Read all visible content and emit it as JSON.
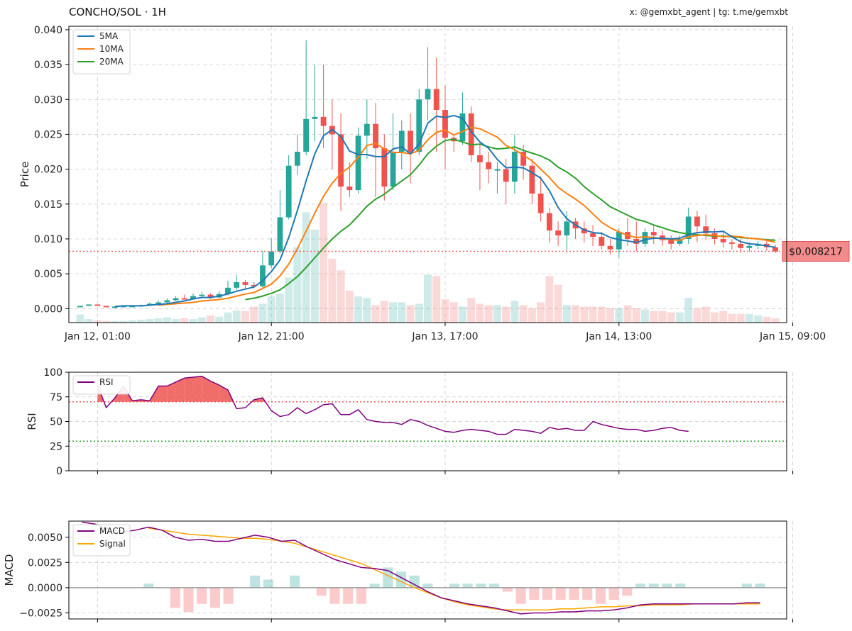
{
  "header": {
    "title": "CONCHO/SOL · 1H",
    "credit": "x: @gemxbt_agent | tg: t.me/gemxbt"
  },
  "colors": {
    "up": "#26a69a",
    "down": "#ef5350",
    "ma5": "#1f77b4",
    "ma10": "#ff7f0e",
    "ma20": "#2ca02c",
    "rsi": "#800080",
    "macd": "#800080",
    "signal": "#ffa500",
    "price_tag_bg": "#f28b8b",
    "price_tag_border": "#e05050"
  },
  "chart_data": [
    {
      "id": "price",
      "type": "candlestick",
      "ylabel": "Price",
      "ylim": [
        -0.002,
        0.0405
      ],
      "yticks": [
        0.0,
        0.005,
        0.01,
        0.015,
        0.02,
        0.025,
        0.03,
        0.035,
        0.04
      ],
      "ytick_labels": [
        "0.000",
        "0.005",
        "0.010",
        "0.015",
        "0.020",
        "0.025",
        "0.030",
        "0.035",
        "0.040"
      ],
      "xtick_labels": [
        "Jan 12, 01:00",
        "Jan 12, 21:00",
        "Jan 13, 17:00",
        "Jan 14, 13:00",
        "Jan 15, 09:00"
      ],
      "xtick_index": [
        2,
        22,
        42,
        62,
        82
      ],
      "legend": [
        "5MA",
        "10MA",
        "20MA"
      ],
      "legend_position": "top-left",
      "grid": true,
      "current_price": 0.008217,
      "current_price_label": "$0.008217",
      "candles": [
        [
          0.0002,
          0.0004,
          0.0004,
          0.0002
        ],
        [
          0.0004,
          0.0006,
          0.0006,
          0.0004
        ],
        [
          0.0006,
          0.0005,
          0.0006,
          0.0004
        ],
        [
          0.0004,
          0.0003,
          0.0004,
          0.0002
        ],
        [
          0.0003,
          0.0003,
          0.0004,
          0.0002
        ],
        [
          0.0003,
          0.0004,
          0.0004,
          0.0003
        ],
        [
          0.0004,
          0.0004,
          0.0005,
          0.0003
        ],
        [
          0.0004,
          0.0005,
          0.0006,
          0.0004
        ],
        [
          0.0005,
          0.0007,
          0.0009,
          0.0004
        ],
        [
          0.0007,
          0.0009,
          0.0012,
          0.0006
        ],
        [
          0.0009,
          0.0012,
          0.0015,
          0.0008
        ],
        [
          0.0012,
          0.0015,
          0.0018,
          0.0011
        ],
        [
          0.0015,
          0.0014,
          0.002,
          0.0013
        ],
        [
          0.0014,
          0.0018,
          0.0022,
          0.0013
        ],
        [
          0.0018,
          0.002,
          0.0024,
          0.0016
        ],
        [
          0.002,
          0.0016,
          0.0022,
          0.0014
        ],
        [
          0.0016,
          0.0021,
          0.0025,
          0.0015
        ],
        [
          0.0021,
          0.003,
          0.004,
          0.0019
        ],
        [
          0.003,
          0.0038,
          0.0048,
          0.0027
        ],
        [
          0.0038,
          0.0034,
          0.0041,
          0.0029
        ],
        [
          0.0034,
          0.0032,
          0.0038,
          0.0029
        ],
        [
          0.0032,
          0.0062,
          0.0083,
          0.003
        ],
        [
          0.0062,
          0.0082,
          0.0101,
          0.0058
        ],
        [
          0.0082,
          0.0131,
          0.017,
          0.0079
        ],
        [
          0.0131,
          0.0205,
          0.022,
          0.0128
        ],
        [
          0.0205,
          0.0225,
          0.025,
          0.0192
        ],
        [
          0.0225,
          0.0272,
          0.0385,
          0.022
        ],
        [
          0.0272,
          0.0275,
          0.035,
          0.024
        ],
        [
          0.0275,
          0.0262,
          0.035,
          0.023
        ],
        [
          0.0262,
          0.025,
          0.03,
          0.02
        ],
        [
          0.025,
          0.0175,
          0.028,
          0.014
        ],
        [
          0.0175,
          0.017,
          0.021,
          0.016
        ],
        [
          0.017,
          0.0248,
          0.026,
          0.0165
        ],
        [
          0.0248,
          0.0265,
          0.03,
          0.0215
        ],
        [
          0.0265,
          0.023,
          0.0295,
          0.016
        ],
        [
          0.023,
          0.0175,
          0.025,
          0.0155
        ],
        [
          0.0175,
          0.0225,
          0.028,
          0.017
        ],
        [
          0.0225,
          0.0255,
          0.027,
          0.02
        ],
        [
          0.0255,
          0.0225,
          0.028,
          0.018
        ],
        [
          0.0225,
          0.03,
          0.0315,
          0.022
        ],
        [
          0.03,
          0.0315,
          0.0375,
          0.027
        ],
        [
          0.0315,
          0.0285,
          0.036,
          0.0225
        ],
        [
          0.0285,
          0.0245,
          0.032,
          0.02
        ],
        [
          0.0245,
          0.024,
          0.025,
          0.0225
        ],
        [
          0.024,
          0.028,
          0.031,
          0.0235
        ],
        [
          0.028,
          0.022,
          0.029,
          0.021
        ],
        [
          0.022,
          0.021,
          0.0235,
          0.017
        ],
        [
          0.021,
          0.02,
          0.0225,
          0.018
        ],
        [
          0.02,
          0.02,
          0.021,
          0.0165
        ],
        [
          0.02,
          0.0182,
          0.0215,
          0.015
        ],
        [
          0.0182,
          0.0225,
          0.025,
          0.0165
        ],
        [
          0.0225,
          0.0205,
          0.0235,
          0.0185
        ],
        [
          0.0205,
          0.0165,
          0.0215,
          0.015
        ],
        [
          0.0165,
          0.0137,
          0.019,
          0.0125
        ],
        [
          0.0137,
          0.0112,
          0.0145,
          0.0095
        ],
        [
          0.0112,
          0.0105,
          0.0125,
          0.009
        ],
        [
          0.0105,
          0.0125,
          0.014,
          0.008
        ],
        [
          0.0125,
          0.0115,
          0.013,
          0.01
        ],
        [
          0.0115,
          0.0108,
          0.0125,
          0.0095
        ],
        [
          0.0108,
          0.0103,
          0.012,
          0.009
        ],
        [
          0.0103,
          0.009,
          0.011,
          0.0085
        ],
        [
          0.009,
          0.0085,
          0.01,
          0.0078
        ],
        [
          0.0085,
          0.011,
          0.0115,
          0.0073
        ],
        [
          0.011,
          0.01,
          0.013,
          0.009
        ],
        [
          0.01,
          0.0093,
          0.0125,
          0.0082
        ],
        [
          0.0093,
          0.011,
          0.0115,
          0.0088
        ],
        [
          0.011,
          0.0105,
          0.012,
          0.0093
        ],
        [
          0.0105,
          0.0098,
          0.0112,
          0.009
        ],
        [
          0.0098,
          0.0093,
          0.0105,
          0.0085
        ],
        [
          0.0093,
          0.01,
          0.0105,
          0.009
        ],
        [
          0.01,
          0.0132,
          0.0145,
          0.0093
        ],
        [
          0.0132,
          0.0118,
          0.014,
          0.0095
        ],
        [
          0.0118,
          0.0108,
          0.0135,
          0.0098
        ],
        [
          0.0108,
          0.01,
          0.0115,
          0.0092
        ],
        [
          0.01,
          0.0095,
          0.011,
          0.0088
        ],
        [
          0.0095,
          0.0093,
          0.01,
          0.0085
        ],
        [
          0.0093,
          0.0087,
          0.01,
          0.008
        ],
        [
          0.0087,
          0.009,
          0.0095,
          0.0082
        ],
        [
          0.009,
          0.0093,
          0.0097,
          0.0085
        ],
        [
          0.0093,
          0.0088,
          0.0098,
          0.0083
        ],
        [
          0.0088,
          0.0082,
          0.0092,
          0.008
        ]
      ],
      "ma5": [
        null,
        null,
        null,
        null,
        0.0003,
        0.0004,
        0.0004,
        0.0004,
        0.0005,
        0.0006,
        0.0007,
        0.0009,
        0.0011,
        0.0014,
        0.0016,
        0.0016,
        0.0018,
        0.0021,
        0.0025,
        0.0028,
        0.0031,
        0.004,
        0.0053,
        0.007,
        0.0102,
        0.0141,
        0.0183,
        0.0222,
        0.0248,
        0.0257,
        0.0247,
        0.0226,
        0.0221,
        0.0221,
        0.0218,
        0.0218,
        0.0229,
        0.0232,
        0.0222,
        0.0236,
        0.0266,
        0.0276,
        0.0274,
        0.0277,
        0.0273,
        0.0254,
        0.0239,
        0.023,
        0.0214,
        0.0202,
        0.0203,
        0.0202,
        0.0195,
        0.0187,
        0.0169,
        0.0145,
        0.0129,
        0.012,
        0.0113,
        0.0109,
        0.0108,
        0.0102,
        0.0099,
        0.0097,
        0.0095,
        0.0099,
        0.0101,
        0.0101,
        0.01,
        0.0101,
        0.0106,
        0.0109,
        0.011,
        0.011,
        0.0111,
        0.0103,
        0.0096,
        0.0093,
        0.0092,
        0.009,
        0.0088
      ],
      "ma10": [
        null,
        null,
        null,
        null,
        null,
        null,
        null,
        null,
        null,
        0.0005,
        0.0006,
        0.0007,
        0.0008,
        0.0009,
        0.0011,
        0.0012,
        0.0013,
        0.0015,
        0.0018,
        0.0021,
        0.0023,
        0.0029,
        0.0035,
        0.0047,
        0.0064,
        0.0086,
        0.0111,
        0.0137,
        0.0161,
        0.018,
        0.0194,
        0.0203,
        0.0217,
        0.0234,
        0.0237,
        0.0229,
        0.0224,
        0.0224,
        0.0222,
        0.0227,
        0.0242,
        0.0253,
        0.0256,
        0.0249,
        0.0254,
        0.026,
        0.0258,
        0.0252,
        0.0246,
        0.0234,
        0.0228,
        0.022,
        0.0212,
        0.02,
        0.0188,
        0.0174,
        0.0165,
        0.0157,
        0.0148,
        0.0136,
        0.0124,
        0.0116,
        0.011,
        0.0105,
        0.0102,
        0.0103,
        0.0102,
        0.01,
        0.0099,
        0.0098,
        0.0103,
        0.0105,
        0.0106,
        0.0105,
        0.0103,
        0.0104,
        0.0103,
        0.0101,
        0.01,
        0.0098,
        0.0095
      ],
      "ma20": [
        null,
        null,
        null,
        null,
        null,
        null,
        null,
        null,
        null,
        null,
        null,
        null,
        null,
        null,
        null,
        null,
        null,
        null,
        null,
        0.0013,
        0.0015,
        0.0018,
        0.0022,
        0.0027,
        0.0036,
        0.0046,
        0.0059,
        0.0073,
        0.0087,
        0.01,
        0.0111,
        0.012,
        0.0133,
        0.0147,
        0.0157,
        0.0164,
        0.0174,
        0.0183,
        0.0192,
        0.0206,
        0.0222,
        0.0233,
        0.0241,
        0.0243,
        0.0239,
        0.0235,
        0.0236,
        0.0232,
        0.0229,
        0.023,
        0.0232,
        0.0227,
        0.0223,
        0.0219,
        0.0213,
        0.0203,
        0.0196,
        0.0187,
        0.0175,
        0.0165,
        0.0156,
        0.0146,
        0.014,
        0.0134,
        0.0128,
        0.0125,
        0.012,
        0.0116,
        0.0112,
        0.0109,
        0.0107,
        0.0106,
        0.0105,
        0.0104,
        0.0104,
        0.0103,
        0.0102,
        0.0101,
        0.01,
        0.0099,
        0.0098
      ],
      "volume": [
        0.28,
        0.12,
        0.08,
        0.06,
        0.05,
        0.06,
        0.08,
        0.1,
        0.12,
        0.15,
        0.18,
        0.12,
        0.15,
        0.12,
        0.18,
        0.25,
        0.2,
        0.35,
        0.42,
        0.4,
        0.55,
        0.65,
        0.9,
        1.0,
        1.55,
        2.6,
        3.8,
        3.2,
        4.1,
        2.2,
        1.8,
        1.1,
        0.9,
        0.85,
        0.6,
        0.75,
        0.7,
        0.7,
        0.6,
        0.65,
        1.65,
        1.6,
        0.8,
        0.7,
        0.55,
        0.85,
        0.65,
        0.6,
        0.6,
        0.55,
        0.75,
        0.6,
        0.5,
        0.7,
        1.6,
        1.3,
        0.6,
        0.6,
        0.55,
        0.55,
        0.55,
        0.5,
        0.5,
        0.6,
        0.5,
        0.45,
        0.4,
        0.4,
        0.35,
        0.35,
        0.85,
        0.5,
        0.55,
        0.35,
        0.4,
        0.3,
        0.3,
        0.3,
        0.25,
        0.2,
        0.15
      ]
    },
    {
      "id": "rsi",
      "type": "line",
      "ylabel": "RSI",
      "ylim": [
        0,
        100
      ],
      "yticks": [
        0,
        25,
        50,
        75,
        100
      ],
      "overbought": 70,
      "oversold": 30,
      "legend": [
        "RSI"
      ],
      "legend_position": "top-left",
      "grid": true,
      "values": [
        null,
        null,
        null,
        null,
        null,
        null,
        null,
        null,
        null,
        null,
        null,
        null,
        null,
        null,
        null,
        null,
        null,
        null,
        null,
        null,
        null,
        null,
        null,
        null,
        null,
        null,
        null,
        null,
        null,
        null,
        null,
        null,
        null,
        null,
        null,
        null,
        null,
        null,
        null,
        null,
        null,
        null,
        null,
        null,
        null,
        null,
        null,
        null,
        null,
        null,
        null,
        null,
        null,
        null,
        null,
        null,
        null,
        null,
        null,
        null,
        null,
        null,
        null,
        null,
        null,
        null,
        null,
        null,
        null,
        null,
        null,
        null,
        null,
        null,
        null,
        null,
        null,
        null,
        null,
        null,
        null
      ],
      "x_start_index": 2,
      "series": [
        87,
        64,
        74,
        86,
        71,
        72,
        71,
        86,
        86,
        90,
        94,
        95,
        96,
        91,
        87,
        82,
        63,
        64,
        72,
        74,
        61,
        55,
        57,
        64,
        58,
        62,
        67,
        68,
        57,
        57,
        62,
        52,
        50,
        49,
        49,
        47,
        52,
        50,
        46,
        43,
        40,
        39,
        41,
        42,
        41,
        40,
        37,
        37,
        42,
        41,
        40,
        38,
        44,
        42,
        43,
        41,
        41,
        50,
        47,
        45,
        43,
        42,
        42,
        40,
        41,
        43,
        44,
        41,
        40
      ]
    },
    {
      "id": "macd",
      "type": "line",
      "ylabel": "MACD",
      "ylim": [
        -0.0031,
        0.0066
      ],
      "yticks": [
        -0.0025,
        0.0,
        0.0025,
        0.005
      ],
      "ytick_labels": [
        "−0.0025",
        "0.0000",
        "0.0025",
        "0.0050"
      ],
      "legend": [
        "MACD",
        "Signal"
      ],
      "legend_position": "top-left",
      "grid": true,
      "macd": [
        0.0065,
        0.0063,
        0.0058,
        0.0055,
        0.0057,
        0.006,
        0.0057,
        0.005,
        0.0047,
        0.0048,
        0.0046,
        0.0046,
        0.0049,
        0.0052,
        0.005,
        0.0046,
        0.0047,
        0.004,
        0.0034,
        0.0028,
        0.0024,
        0.002,
        0.0019,
        0.0017,
        0.001,
        0.0003,
        -0.0004,
        -0.001,
        -0.0013,
        -0.0016,
        -0.0018,
        -0.002,
        -0.0023,
        -0.0026,
        -0.0025,
        -0.0025,
        -0.0024,
        -0.0024,
        -0.0023,
        -0.0023,
        -0.0022,
        -0.002,
        -0.0017,
        -0.0016,
        -0.0016,
        -0.0016,
        -0.0016,
        -0.0016,
        -0.0016,
        -0.0016,
        -0.0015,
        -0.0015
      ],
      "signal": [
        null,
        null,
        null,
        null,
        null,
        0.0059,
        0.0057,
        0.0055,
        0.0053,
        0.0052,
        0.0051,
        0.005,
        0.0049,
        0.0049,
        0.0048,
        0.0046,
        0.0044,
        0.004,
        0.0036,
        0.0032,
        0.0028,
        0.0024,
        0.0018,
        0.0012,
        0.0006,
        0.0,
        -0.0005,
        -0.001,
        -0.0014,
        -0.0017,
        -0.0019,
        -0.0021,
        -0.0022,
        -0.0022,
        -0.0022,
        -0.0022,
        -0.0021,
        -0.0021,
        -0.002,
        -0.0019,
        -0.0019,
        -0.0018,
        -0.0018,
        -0.0017,
        -0.0017,
        -0.0017,
        -0.0016,
        -0.0016,
        -0.0016,
        -0.0016,
        -0.0016,
        -0.0016
      ],
      "histogram": [
        0,
        0,
        0,
        0,
        0,
        0.0001,
        0.0,
        -0.0005,
        -0.0006,
        -0.0004,
        -0.0005,
        -0.0004,
        0.0,
        0.0003,
        0.0002,
        0.0,
        0.0003,
        0.0,
        -0.0002,
        -0.0004,
        -0.0004,
        -0.0004,
        0.0001,
        0.0005,
        0.0004,
        0.0003,
        0.0001,
        0.0,
        0.0001,
        0.0001,
        0.0001,
        0.0001,
        -0.0001,
        -0.0004,
        -0.0003,
        -0.0003,
        -0.0003,
        -0.0003,
        -0.0003,
        -0.0004,
        -0.0003,
        -0.0002,
        0.0001,
        0.0001,
        0.0001,
        0.0001,
        0.0,
        0.0,
        0.0,
        0.0,
        0.0001,
        0.0001
      ]
    }
  ]
}
